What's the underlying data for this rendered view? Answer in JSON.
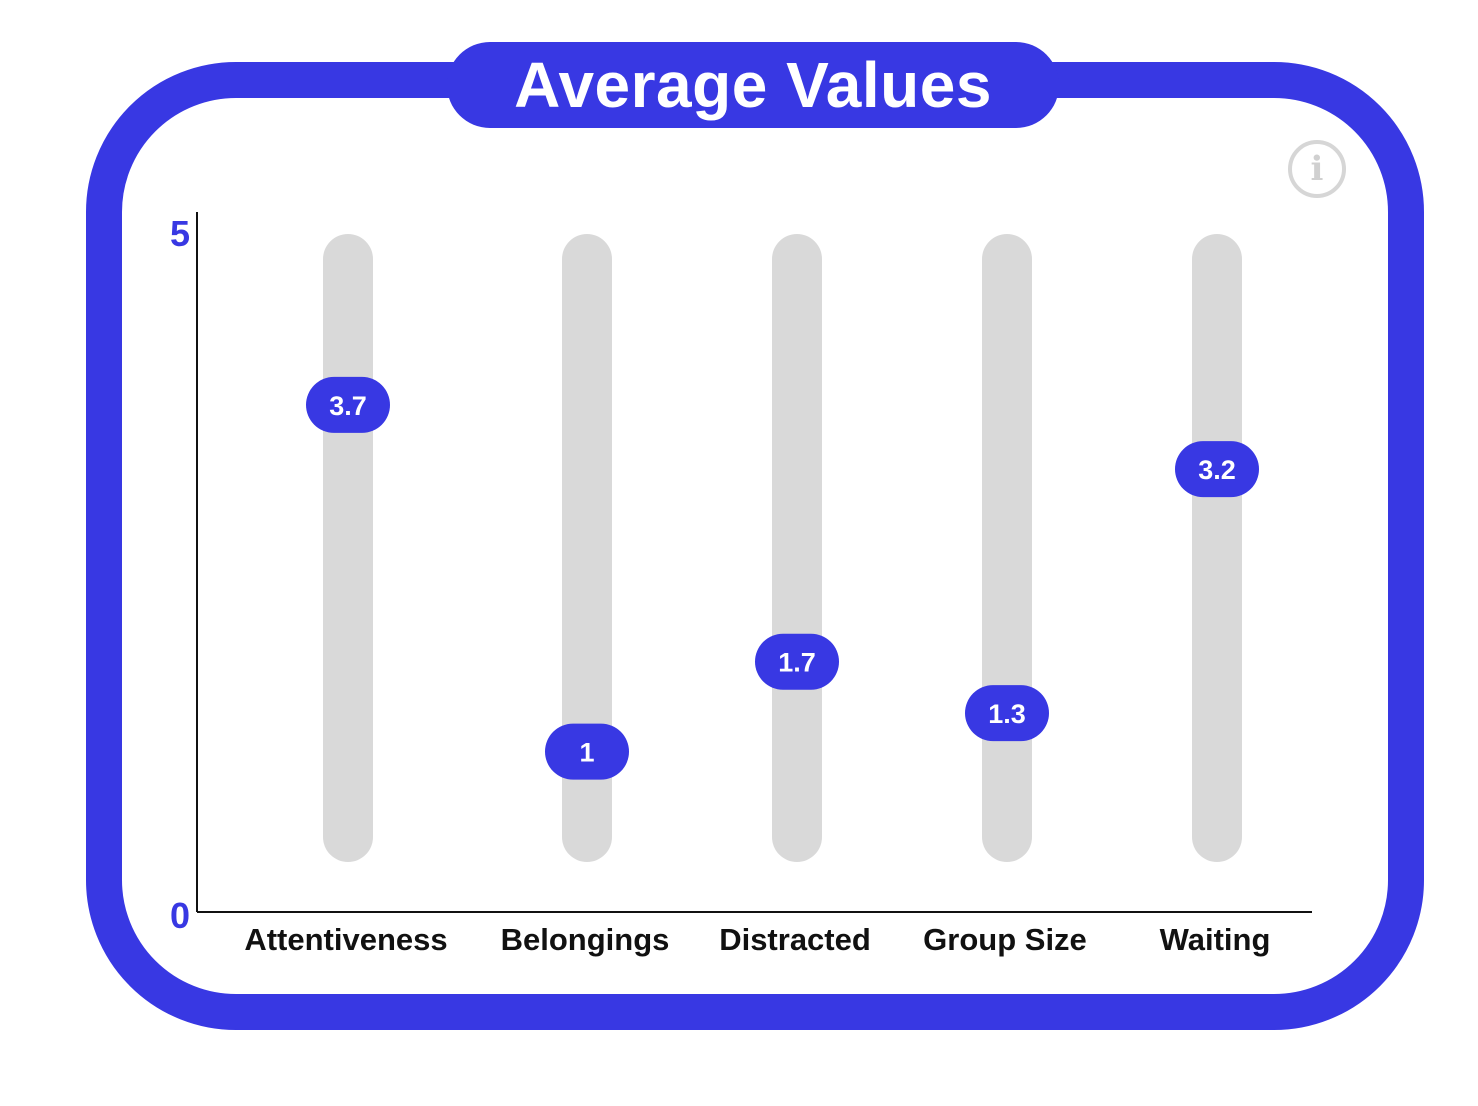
{
  "chart_data": {
    "type": "bar",
    "title": "Average Values",
    "categories": [
      "Attentiveness",
      "Belongings",
      "Distracted",
      "Group Size",
      "Waiting"
    ],
    "values": [
      3.7,
      1,
      1.7,
      1.3,
      3.2
    ],
    "value_labels": [
      "3.7",
      "1",
      "1.7",
      "1.3",
      "3.2"
    ],
    "ylim": [
      0,
      5
    ],
    "y_ticks": [
      "0",
      "5"
    ],
    "xlabel": "",
    "ylabel": "",
    "grid": false,
    "legend": "none"
  },
  "colors": {
    "accent": "#3838e3",
    "track": "#d9d9d9",
    "axis": "#111111",
    "info_icon": "#d6d6d6"
  },
  "icons": {
    "info": "info-icon"
  }
}
